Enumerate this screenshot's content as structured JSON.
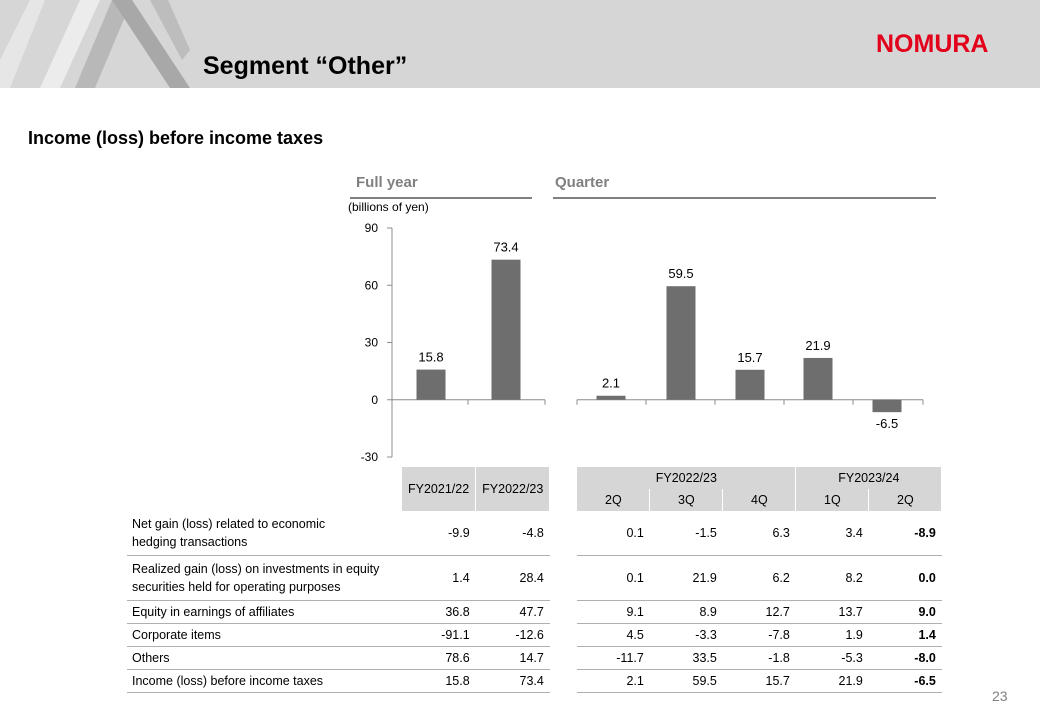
{
  "header": {
    "title": "Segment “Other”",
    "logo_text": "NOMURA",
    "logo_color": "#e2001a"
  },
  "subtitle": "Income (loss) before income taxes",
  "sections": {
    "full_year": "Full year",
    "quarter": "Quarter"
  },
  "unit": "(billions of yen)",
  "chart_data": {
    "type": "bar",
    "ylabel": "(billions of yen)",
    "ylim": [
      -30,
      90
    ],
    "yticks": [
      90,
      60,
      30,
      0,
      -30
    ],
    "bar_color": "#6e6e6e",
    "groups": [
      {
        "name": "Full year",
        "categories": [
          "FY2021/22",
          "FY2022/23"
        ],
        "values": [
          15.8,
          73.4
        ],
        "labels": [
          "15.8",
          "73.4"
        ]
      },
      {
        "name": "Quarter",
        "categories": [
          "FY2022/23 2Q",
          "FY2022/23 3Q",
          "FY2022/23 4Q",
          "FY2023/24 1Q",
          "FY2023/24 2Q"
        ],
        "values": [
          2.1,
          59.5,
          15.7,
          21.9,
          -6.5
        ],
        "labels": [
          "2.1",
          "59.5",
          "15.7",
          "21.9",
          "-6.5"
        ]
      }
    ]
  },
  "table": {
    "fy_headers": [
      "FY2021/22",
      "FY2022/23"
    ],
    "q_group_headers": [
      "FY2022/23",
      "FY2023/24"
    ],
    "q_headers": [
      "2Q",
      "3Q",
      "4Q",
      "1Q",
      "2Q"
    ],
    "rows": [
      {
        "label_lines": [
          "Net gain (loss) related to economic",
          "hedging transactions"
        ],
        "values": [
          "-9.9",
          "-4.8",
          "0.1",
          "-1.5",
          "6.3",
          "3.4",
          "-8.9"
        ]
      },
      {
        "label_lines": [
          "Realized gain (loss) on investments in equity",
          "securities held for operating purposes"
        ],
        "values": [
          "1.4",
          "28.4",
          "0.1",
          "21.9",
          "6.2",
          "8.2",
          "0.0"
        ]
      },
      {
        "label_lines": [
          "Equity in earnings of affiliates"
        ],
        "values": [
          "36.8",
          "47.7",
          "9.1",
          "8.9",
          "12.7",
          "13.7",
          "9.0"
        ]
      },
      {
        "label_lines": [
          "Corporate items"
        ],
        "values": [
          "-91.1",
          "-12.6",
          "4.5",
          "-3.3",
          "-7.8",
          "1.9",
          "1.4"
        ]
      },
      {
        "label_lines": [
          "Others"
        ],
        "values": [
          "78.6",
          "14.7",
          "-11.7",
          "33.5",
          "-1.8",
          "-5.3",
          "-8.0"
        ]
      },
      {
        "label_lines": [
          "Income (loss) before income taxes"
        ],
        "values": [
          "15.8",
          "73.4",
          "2.1",
          "59.5",
          "15.7",
          "21.9",
          "-6.5"
        ]
      }
    ]
  },
  "page_number": "23"
}
